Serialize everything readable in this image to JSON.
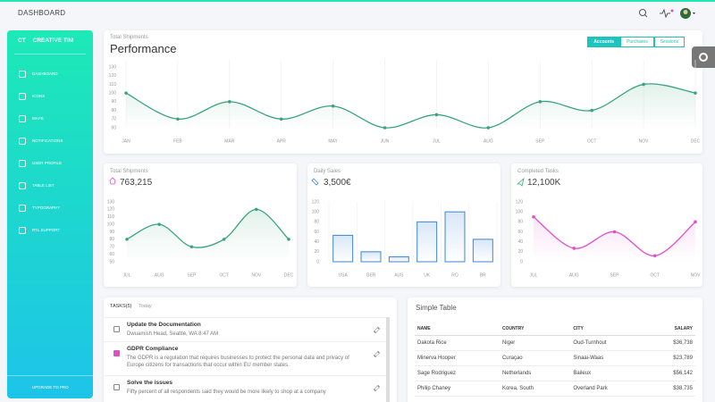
{
  "navbar": {
    "title": "DASHBOARD"
  },
  "sidebar": {
    "logo_short": "CT",
    "logo": "CREATIVE TIM",
    "items": [
      "DASHBOARD",
      "ICONS",
      "MAPS",
      "NOTIFICATIONS",
      "USER PROFILE",
      "TABLE LIST",
      "TYPOGRAPHY",
      "RTL SUPPORT"
    ],
    "upgrade": "UPGRADE TO PRO"
  },
  "performance": {
    "subtitle": "Total Shipments",
    "title": "Performance",
    "tabs": [
      "Accounts",
      "Purchases",
      "Sessions"
    ],
    "chart": {
      "type": "line",
      "categories": [
        "JAN",
        "FEB",
        "MAR",
        "APR",
        "MAY",
        "JUN",
        "JUL",
        "AUG",
        "SEP",
        "OCT",
        "NOV",
        "DEC"
      ],
      "values": [
        100,
        70,
        90,
        70,
        85,
        60,
        75,
        60,
        90,
        80,
        110,
        100
      ],
      "ylim": [
        60,
        130
      ],
      "yticks": [
        60,
        70,
        80,
        90,
        100,
        110,
        120,
        130
      ],
      "color": "#3aa57a"
    }
  },
  "shipments": {
    "subtitle": "Total Shipments",
    "value": "763,215",
    "chart": {
      "type": "line",
      "categories": [
        "JUL",
        "AUG",
        "SEP",
        "OCT",
        "NOV",
        "DEC"
      ],
      "values": [
        80,
        100,
        70,
        80,
        120,
        80
      ],
      "ylim": [
        50,
        130
      ],
      "yticks": [
        50,
        60,
        70,
        80,
        90,
        100,
        110,
        120,
        130
      ],
      "color": "#3aa57a"
    }
  },
  "sales": {
    "subtitle": "Daily Sales",
    "value": "3,500€",
    "chart": {
      "type": "bar",
      "categories": [
        "USA",
        "GER",
        "AUS",
        "UK",
        "RO",
        "BR"
      ],
      "values": [
        53,
        20,
        10,
        80,
        100,
        45
      ],
      "ylim": [
        0,
        120
      ],
      "yticks": [
        0,
        20,
        40,
        60,
        80,
        100,
        120
      ],
      "color": "#3d86d8"
    }
  },
  "completed": {
    "subtitle": "Completed Tasks",
    "value": "12,100K",
    "chart": {
      "type": "line",
      "categories": [
        "JUL",
        "AUG",
        "SEP",
        "OCT",
        "NOV"
      ],
      "values": [
        90,
        27,
        60,
        12,
        80
      ],
      "ylim": [
        0,
        120
      ],
      "yticks": [
        0,
        20,
        40,
        60,
        80,
        100,
        120
      ],
      "color": "#e14eca"
    }
  },
  "tasks": {
    "title": "TASKS(5)",
    "filter": "Today",
    "items": [
      {
        "title": "Update the Documentation",
        "description": "Dwuamish Head, Seattle, WA 8:47 AM",
        "done": false
      },
      {
        "title": "GDPR Compliance",
        "description": "The GDPR is a regulation that requires businesses to protect the personal data and privacy of Europe citizens for transactions that occur within EU member states.",
        "done": true
      },
      {
        "title": "Solve the issues",
        "description": "Fifty percent of all respondents said they would be more likely to shop at a company",
        "done": false
      }
    ]
  },
  "table": {
    "title": "Simple Table",
    "columns": [
      "NAME",
      "COUNTRY",
      "CITY",
      "SALARY"
    ],
    "rows": [
      [
        "Dakota Rice",
        "Niger",
        "Oud-Turnhout",
        "$36,738"
      ],
      [
        "Minerva Hooper",
        "Curaçao",
        "Sinaai-Waas",
        "$23,789"
      ],
      [
        "Sage Rodriguez",
        "Netherlands",
        "Baileux",
        "$56,142"
      ],
      [
        "Philip Chaney",
        "Korea, South",
        "Overland Park",
        "$38,735"
      ]
    ]
  }
}
